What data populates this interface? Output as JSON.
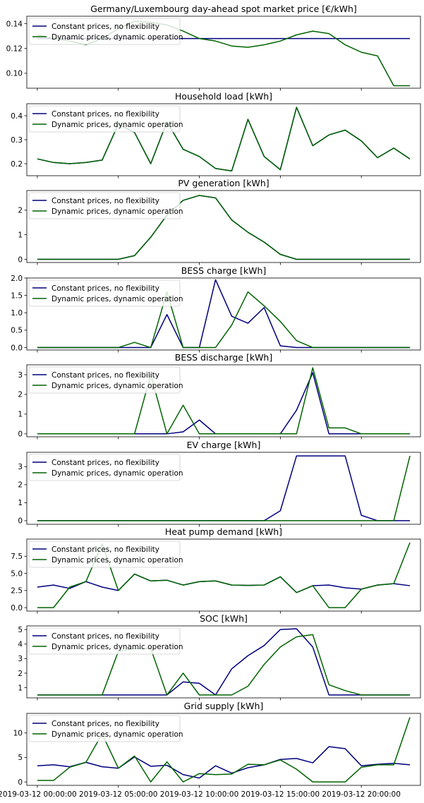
{
  "legend": [
    {
      "name": "Constant prices, no flexibility",
      "color": "#00007f"
    },
    {
      "name": "Dynamic prices, dynamic operation",
      "color": "#006400"
    }
  ],
  "x_ticks": [
    "2019-03-12 00:00:00",
    "2019-03-12 05:00:00",
    "2019-03-12 10:00:00",
    "2019-03-12 15:00:00",
    "2019-03-12 20:00:00"
  ],
  "x_tick_hours": [
    0,
    5,
    10,
    15,
    20
  ],
  "chart_data": [
    {
      "type": "line",
      "title": "Germany/Luxembourg day-ahead spot market price [€/kWh]",
      "legend": "upper-left",
      "x": [
        0,
        1,
        2,
        3,
        4,
        5,
        6,
        7,
        8,
        9,
        10,
        11,
        12,
        13,
        14,
        15,
        16,
        17,
        18,
        19,
        20,
        21,
        22,
        23
      ],
      "ylim": [
        0.088,
        0.146
      ],
      "yticks": [
        0.1,
        0.12,
        0.14
      ],
      "ytick_labels": [
        "0.10",
        "0.12",
        "0.14"
      ],
      "series": [
        {
          "name": "Constant prices, no flexibility",
          "values": [
            0.128,
            0.128,
            0.128,
            0.128,
            0.128,
            0.128,
            0.128,
            0.128,
            0.128,
            0.128,
            0.128,
            0.128,
            0.128,
            0.128,
            0.128,
            0.128,
            0.128,
            0.128,
            0.128,
            0.128,
            0.128,
            0.128,
            0.128,
            0.128
          ]
        },
        {
          "name": "Dynamic prices, dynamic operation",
          "values": [
            0.131,
            0.128,
            0.126,
            0.123,
            0.128,
            0.136,
            0.142,
            0.141,
            0.139,
            0.134,
            0.128,
            0.126,
            0.122,
            0.121,
            0.123,
            0.126,
            0.131,
            0.134,
            0.132,
            0.123,
            0.117,
            0.114,
            0.09,
            0.09
          ]
        }
      ]
    },
    {
      "type": "line",
      "title": "Household load [kWh]",
      "legend": "upper-left",
      "x": [
        0,
        1,
        2,
        3,
        4,
        5,
        6,
        7,
        8,
        9,
        10,
        11,
        12,
        13,
        14,
        15,
        16,
        17,
        18,
        19,
        20,
        21,
        22,
        23
      ],
      "ylim": [
        0.15,
        0.45
      ],
      "yticks": [
        0.2,
        0.3,
        0.4
      ],
      "ytick_labels": [
        "0.2",
        "0.3",
        "0.4"
      ],
      "series": [
        {
          "name": "Constant prices, no flexibility",
          "values": [
            0.22,
            0.205,
            0.2,
            0.205,
            0.215,
            0.365,
            0.33,
            0.2,
            0.375,
            0.26,
            0.23,
            0.18,
            0.17,
            0.385,
            0.23,
            0.175,
            0.435,
            0.275,
            0.32,
            0.34,
            0.295,
            0.225,
            0.265,
            0.22
          ]
        },
        {
          "name": "Dynamic prices, dynamic operation",
          "values": [
            0.22,
            0.205,
            0.2,
            0.205,
            0.215,
            0.365,
            0.33,
            0.2,
            0.375,
            0.26,
            0.23,
            0.18,
            0.17,
            0.385,
            0.23,
            0.175,
            0.435,
            0.275,
            0.32,
            0.34,
            0.295,
            0.225,
            0.265,
            0.22
          ]
        }
      ]
    },
    {
      "type": "line",
      "title": "PV generation [kWh]",
      "legend": "upper-left",
      "x": [
        0,
        1,
        2,
        3,
        4,
        5,
        6,
        7,
        8,
        9,
        10,
        11,
        12,
        13,
        14,
        15,
        16,
        17,
        18,
        19,
        20,
        21,
        22,
        23
      ],
      "ylim": [
        -0.13,
        2.8
      ],
      "yticks": [
        0,
        1,
        2
      ],
      "ytick_labels": [
        "0",
        "1",
        "2"
      ],
      "series": [
        {
          "name": "Constant prices, no flexibility",
          "values": [
            0,
            0,
            0,
            0,
            0,
            0,
            0.15,
            0.9,
            1.8,
            2.4,
            2.6,
            2.5,
            1.6,
            1.1,
            0.7,
            0.2,
            0,
            0,
            0,
            0,
            0,
            0,
            0,
            0
          ]
        },
        {
          "name": "Dynamic prices, dynamic operation",
          "values": [
            0,
            0,
            0,
            0,
            0,
            0,
            0.15,
            0.9,
            1.8,
            2.4,
            2.6,
            2.5,
            1.6,
            1.1,
            0.7,
            0.2,
            0,
            0,
            0,
            0,
            0,
            0,
            0,
            0
          ]
        }
      ]
    },
    {
      "type": "line",
      "title": "BESS charge [kWh]",
      "legend": "upper-left",
      "x": [
        0,
        1,
        2,
        3,
        4,
        5,
        6,
        7,
        8,
        9,
        10,
        11,
        12,
        13,
        14,
        15,
        16,
        17,
        18,
        19,
        20,
        21,
        22,
        23
      ],
      "ylim": [
        -0.07,
        2.0
      ],
      "yticks": [
        0.0,
        0.5,
        1.0,
        1.5,
        2.0
      ],
      "ytick_labels": [
        "0.0",
        "0.5",
        "1.0",
        "1.5",
        "2.0"
      ],
      "series": [
        {
          "name": "Constant prices, no flexibility",
          "values": [
            0,
            0,
            0,
            0,
            0,
            0,
            0,
            0,
            0.95,
            0,
            0,
            1.95,
            0.9,
            0.7,
            1.15,
            0.05,
            0,
            0,
            0,
            0,
            0,
            0,
            0,
            0
          ]
        },
        {
          "name": "Dynamic prices, dynamic operation",
          "values": [
            0,
            0,
            0,
            0,
            0,
            0,
            0.15,
            0,
            1.6,
            0,
            0,
            0,
            0.65,
            1.6,
            1.2,
            0.75,
            0.2,
            0,
            0,
            0,
            0,
            0,
            0,
            0
          ]
        }
      ]
    },
    {
      "type": "line",
      "title": "BESS discharge [kWh]",
      "legend": "upper-left",
      "x": [
        0,
        1,
        2,
        3,
        4,
        5,
        6,
        7,
        8,
        9,
        10,
        11,
        12,
        13,
        14,
        15,
        16,
        17,
        18,
        19,
        20,
        21,
        22,
        23
      ],
      "ylim": [
        -0.15,
        3.5
      ],
      "yticks": [
        0,
        1,
        2,
        3
      ],
      "ytick_labels": [
        "0",
        "1",
        "2",
        "3"
      ],
      "series": [
        {
          "name": "Constant prices, no flexibility",
          "values": [
            0,
            0,
            0,
            0,
            0,
            0,
            0,
            0,
            0,
            0.1,
            0.7,
            0,
            0,
            0,
            0,
            0,
            1.2,
            3.1,
            0,
            0,
            0,
            0,
            0,
            0
          ]
        },
        {
          "name": "Dynamic prices, dynamic operation",
          "values": [
            0,
            0,
            0,
            0,
            0,
            0,
            0,
            3.0,
            0,
            1.45,
            0,
            0,
            0,
            0,
            0,
            0,
            0,
            3.35,
            0.3,
            0.3,
            0,
            0,
            0,
            0
          ]
        }
      ]
    },
    {
      "type": "line",
      "title": "EV charge [kWh]",
      "legend": "upper-left",
      "x": [
        0,
        1,
        2,
        3,
        4,
        5,
        6,
        7,
        8,
        9,
        10,
        11,
        12,
        13,
        14,
        15,
        16,
        17,
        18,
        19,
        20,
        21,
        22,
        23
      ],
      "ylim": [
        -0.2,
        3.8
      ],
      "yticks": [
        0,
        1,
        2,
        3
      ],
      "ytick_labels": [
        "0",
        "1",
        "2",
        "3"
      ],
      "series": [
        {
          "name": "Constant prices, no flexibility",
          "values": [
            0,
            0,
            0,
            0,
            0,
            0,
            0,
            0,
            0,
            0,
            0,
            0,
            0,
            0,
            0,
            0.55,
            3.6,
            3.6,
            3.6,
            3.6,
            0.3,
            0,
            0,
            0
          ]
        },
        {
          "name": "Dynamic prices, dynamic operation",
          "values": [
            0,
            0,
            0,
            0,
            0,
            0,
            0,
            0,
            0,
            0,
            0,
            0,
            0,
            0,
            0,
            0,
            0,
            0,
            0,
            0,
            0,
            0,
            0,
            3.6
          ]
        }
      ]
    },
    {
      "type": "line",
      "title": "Heat pump demand [kWh]",
      "legend": "upper-left",
      "x": [
        0,
        1,
        2,
        3,
        4,
        5,
        6,
        7,
        8,
        9,
        10,
        11,
        12,
        13,
        14,
        15,
        16,
        17,
        18,
        19,
        20,
        21,
        22,
        23
      ],
      "ylim": [
        -0.5,
        10.0
      ],
      "yticks": [
        0.0,
        2.5,
        5.0,
        7.5
      ],
      "ytick_labels": [
        "0.0",
        "2.5",
        "5.0",
        "7.5"
      ],
      "series": [
        {
          "name": "Constant prices, no flexibility",
          "values": [
            3.0,
            3.3,
            2.8,
            3.8,
            3.0,
            2.5,
            4.9,
            3.9,
            4.0,
            3.3,
            3.8,
            3.9,
            3.3,
            3.25,
            3.3,
            4.5,
            2.2,
            3.2,
            3.3,
            2.9,
            2.7,
            3.3,
            3.5,
            3.2
          ]
        },
        {
          "name": "Dynamic prices, dynamic operation",
          "values": [
            0,
            0,
            3.0,
            3.8,
            9.3,
            2.5,
            4.9,
            3.9,
            4.0,
            3.3,
            3.8,
            3.9,
            3.3,
            3.25,
            3.3,
            4.5,
            2.2,
            3.2,
            0,
            0,
            2.7,
            3.3,
            3.5,
            9.5
          ]
        }
      ]
    },
    {
      "type": "line",
      "title": "SOC [kWh]",
      "legend": "upper-left",
      "x": [
        0,
        1,
        2,
        3,
        4,
        5,
        6,
        7,
        8,
        9,
        10,
        11,
        12,
        13,
        14,
        15,
        16,
        17,
        18,
        19,
        20,
        21,
        22,
        23
      ],
      "ylim": [
        0.3,
        5.25
      ],
      "yticks": [
        1,
        2,
        3,
        4,
        5
      ],
      "ytick_labels": [
        "1",
        "2",
        "3",
        "4",
        "5"
      ],
      "series": [
        {
          "name": "Constant prices, no flexibility",
          "values": [
            0.5,
            0.5,
            0.5,
            0.5,
            0.5,
            0.5,
            0.5,
            0.5,
            0.5,
            1.4,
            1.3,
            0.5,
            2.3,
            3.2,
            3.9,
            5.0,
            5.05,
            3.8,
            0.5,
            0.5,
            0.5,
            0.5,
            0.5,
            0.5
          ]
        },
        {
          "name": "Dynamic prices, dynamic operation",
          "values": [
            0.5,
            0.5,
            0.5,
            0.5,
            0.5,
            3.5,
            3.7,
            3.7,
            0.5,
            2.0,
            0.5,
            0.5,
            0.5,
            1.1,
            2.6,
            3.8,
            4.5,
            4.65,
            1.2,
            0.8,
            0.5,
            0.5,
            0.5,
            0.5
          ]
        }
      ]
    },
    {
      "type": "line",
      "title": "Grid supply [kWh]",
      "legend": "upper-left",
      "x": [
        0,
        1,
        2,
        3,
        4,
        5,
        6,
        7,
        8,
        9,
        10,
        11,
        12,
        13,
        14,
        15,
        16,
        17,
        18,
        19,
        20,
        21,
        22,
        23
      ],
      "ylim": [
        -0.7,
        14.0
      ],
      "yticks": [
        0,
        5,
        10
      ],
      "ytick_labels": [
        "0",
        "5",
        "10"
      ],
      "series": [
        {
          "name": "Constant prices, no flexibility",
          "values": [
            3.3,
            3.5,
            3.1,
            4.0,
            3.1,
            2.8,
            5.1,
            3.2,
            3.4,
            1.5,
            0.8,
            3.3,
            1.8,
            2.9,
            3.5,
            4.6,
            4.8,
            3.9,
            7.2,
            6.8,
            3.3,
            3.6,
            3.8,
            3.5
          ]
        },
        {
          "name": "Dynamic prices, dynamic operation",
          "values": [
            0.3,
            0.3,
            3.0,
            4.0,
            9.8,
            2.8,
            5.3,
            0,
            4.1,
            0,
            1.7,
            1.5,
            1.6,
            3.6,
            3.5,
            4.5,
            2.6,
            0,
            0,
            0,
            3.0,
            3.5,
            3.5,
            13.2
          ]
        }
      ]
    }
  ]
}
